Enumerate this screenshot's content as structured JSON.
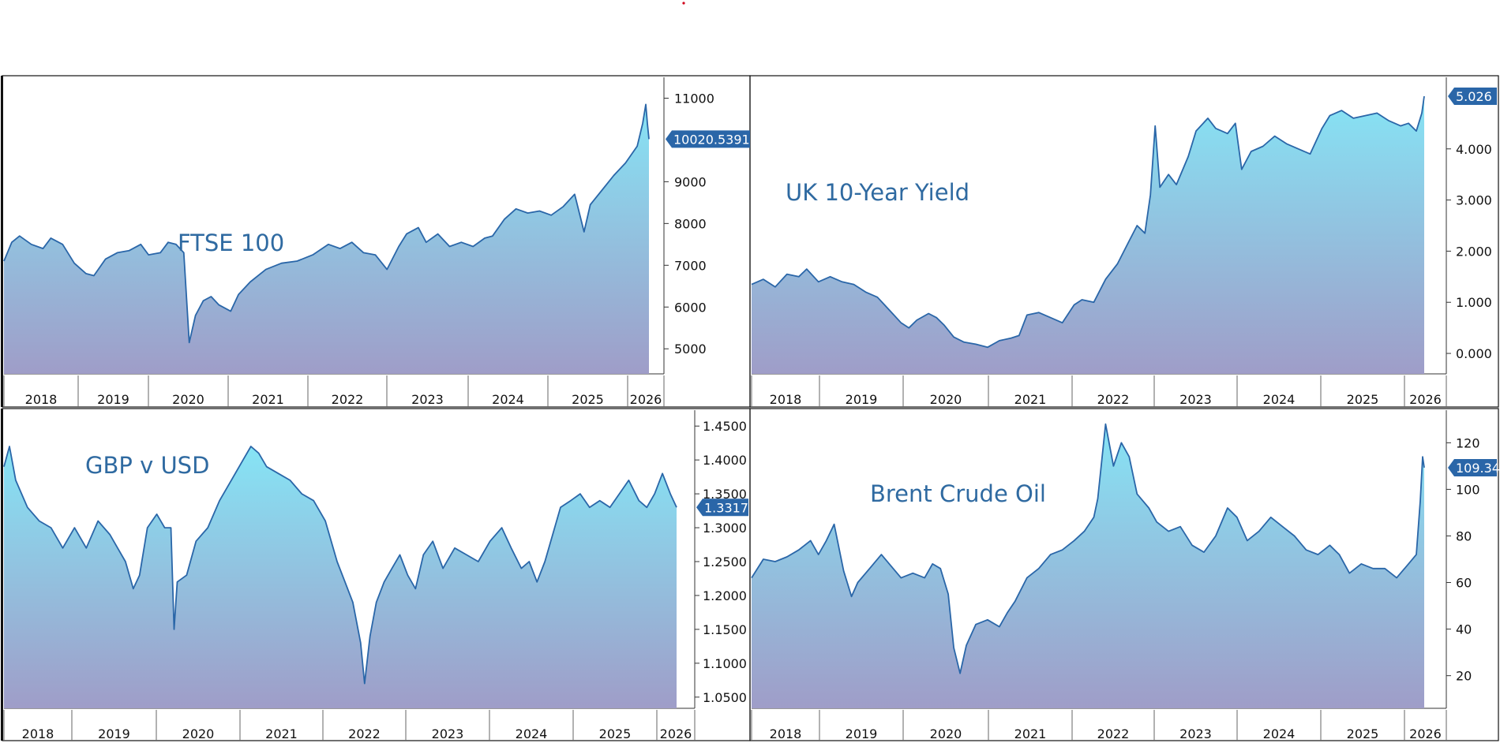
{
  "colors": {
    "line": "#2a66a8",
    "fill_top": "#86e4f5",
    "fill_bottom": "#9f9dc8",
    "title": "#2f6aa1",
    "tag": "#2a66a8",
    "dot": "#d0021b"
  },
  "chart_data": [
    {
      "id": "ftse",
      "type": "area",
      "title": "FTSE 100",
      "ylim": [
        4400,
        11500
      ],
      "yticks": [
        "5000",
        "6000",
        "7000",
        "8000",
        "9000",
        "11000"
      ],
      "ytick_values": [
        5000,
        6000,
        7000,
        8000,
        9000,
        11000
      ],
      "last_value": "10020.5391",
      "xlabels": [
        "2018",
        "2019",
        "2020",
        "2021",
        "2022",
        "2023",
        "2024",
        "2025",
        "2026"
      ],
      "x_start": 2017.85,
      "x_end": 2026.1,
      "series": [
        [
          2017.85,
          7100
        ],
        [
          2017.95,
          7550
        ],
        [
          2018.05,
          7700
        ],
        [
          2018.2,
          7500
        ],
        [
          2018.35,
          7400
        ],
        [
          2018.45,
          7650
        ],
        [
          2018.6,
          7500
        ],
        [
          2018.75,
          7050
        ],
        [
          2018.9,
          6800
        ],
        [
          2019.0,
          6750
        ],
        [
          2019.15,
          7150
        ],
        [
          2019.3,
          7300
        ],
        [
          2019.45,
          7350
        ],
        [
          2019.6,
          7500
        ],
        [
          2019.7,
          7250
        ],
        [
          2019.85,
          7300
        ],
        [
          2019.95,
          7550
        ],
        [
          2020.05,
          7500
        ],
        [
          2020.15,
          7300
        ],
        [
          2020.22,
          5150
        ],
        [
          2020.3,
          5800
        ],
        [
          2020.4,
          6150
        ],
        [
          2020.5,
          6250
        ],
        [
          2020.6,
          6050
        ],
        [
          2020.75,
          5900
        ],
        [
          2020.85,
          6300
        ],
        [
          2021.0,
          6600
        ],
        [
          2021.2,
          6900
        ],
        [
          2021.4,
          7050
        ],
        [
          2021.6,
          7100
        ],
        [
          2021.8,
          7250
        ],
        [
          2022.0,
          7500
        ],
        [
          2022.15,
          7400
        ],
        [
          2022.3,
          7550
        ],
        [
          2022.45,
          7300
        ],
        [
          2022.6,
          7250
        ],
        [
          2022.75,
          6900
        ],
        [
          2022.9,
          7450
        ],
        [
          2023.0,
          7750
        ],
        [
          2023.15,
          7900
        ],
        [
          2023.25,
          7550
        ],
        [
          2023.4,
          7750
        ],
        [
          2023.55,
          7450
        ],
        [
          2023.7,
          7550
        ],
        [
          2023.85,
          7450
        ],
        [
          2024.0,
          7650
        ],
        [
          2024.1,
          7700
        ],
        [
          2024.25,
          8100
        ],
        [
          2024.4,
          8350
        ],
        [
          2024.55,
          8250
        ],
        [
          2024.7,
          8300
        ],
        [
          2024.85,
          8200
        ],
        [
          2025.0,
          8400
        ],
        [
          2025.15,
          8700
        ],
        [
          2025.27,
          7800
        ],
        [
          2025.35,
          8450
        ],
        [
          2025.5,
          8800
        ],
        [
          2025.65,
          9150
        ],
        [
          2025.8,
          9450
        ],
        [
          2025.95,
          9850
        ],
        [
          2026.02,
          10400
        ],
        [
          2026.06,
          10850
        ],
        [
          2026.08,
          10400
        ],
        [
          2026.1,
          10020
        ]
      ]
    },
    {
      "id": "gilt",
      "type": "area",
      "title": "UK 10-Year Yield",
      "ylim": [
        -0.4,
        5.4
      ],
      "yticks": [
        "0.000",
        "1.000",
        "2.000",
        "3.000",
        "4.000"
      ],
      "ytick_values": [
        0,
        1,
        2,
        3,
        4
      ],
      "last_value": "5.026",
      "xlabels": [
        "2018",
        "2019",
        "2020",
        "2021",
        "2022",
        "2023",
        "2024",
        "2025",
        "2026"
      ],
      "x_start": 2017.65,
      "x_end": 2026.2,
      "series": [
        [
          2017.65,
          1.35
        ],
        [
          2017.8,
          1.45
        ],
        [
          2017.95,
          1.3
        ],
        [
          2018.1,
          1.55
        ],
        [
          2018.25,
          1.5
        ],
        [
          2018.35,
          1.65
        ],
        [
          2018.5,
          1.4
        ],
        [
          2018.65,
          1.5
        ],
        [
          2018.8,
          1.4
        ],
        [
          2018.95,
          1.35
        ],
        [
          2019.1,
          1.2
        ],
        [
          2019.25,
          1.1
        ],
        [
          2019.4,
          0.85
        ],
        [
          2019.55,
          0.6
        ],
        [
          2019.65,
          0.5
        ],
        [
          2019.75,
          0.65
        ],
        [
          2019.9,
          0.78
        ],
        [
          2020.0,
          0.7
        ],
        [
          2020.1,
          0.55
        ],
        [
          2020.22,
          0.32
        ],
        [
          2020.35,
          0.22
        ],
        [
          2020.5,
          0.18
        ],
        [
          2020.65,
          0.12
        ],
        [
          2020.8,
          0.25
        ],
        [
          2020.95,
          0.3
        ],
        [
          2021.05,
          0.35
        ],
        [
          2021.15,
          0.75
        ],
        [
          2021.3,
          0.8
        ],
        [
          2021.45,
          0.7
        ],
        [
          2021.6,
          0.6
        ],
        [
          2021.75,
          0.95
        ],
        [
          2021.85,
          1.05
        ],
        [
          2022.0,
          1.0
        ],
        [
          2022.15,
          1.45
        ],
        [
          2022.3,
          1.75
        ],
        [
          2022.45,
          2.2
        ],
        [
          2022.55,
          2.5
        ],
        [
          2022.65,
          2.35
        ],
        [
          2022.72,
          3.1
        ],
        [
          2022.78,
          4.45
        ],
        [
          2022.84,
          3.25
        ],
        [
          2022.95,
          3.5
        ],
        [
          2023.05,
          3.3
        ],
        [
          2023.2,
          3.85
        ],
        [
          2023.3,
          4.35
        ],
        [
          2023.45,
          4.6
        ],
        [
          2023.55,
          4.4
        ],
        [
          2023.7,
          4.3
        ],
        [
          2023.8,
          4.5
        ],
        [
          2023.88,
          3.6
        ],
        [
          2024.0,
          3.95
        ],
        [
          2024.15,
          4.05
        ],
        [
          2024.3,
          4.25
        ],
        [
          2024.45,
          4.1
        ],
        [
          2024.6,
          4.0
        ],
        [
          2024.75,
          3.9
        ],
        [
          2024.9,
          4.4
        ],
        [
          2025.0,
          4.65
        ],
        [
          2025.15,
          4.75
        ],
        [
          2025.3,
          4.6
        ],
        [
          2025.45,
          4.65
        ],
        [
          2025.6,
          4.7
        ],
        [
          2025.75,
          4.55
        ],
        [
          2025.9,
          4.45
        ],
        [
          2026.0,
          4.5
        ],
        [
          2026.1,
          4.35
        ],
        [
          2026.17,
          4.7
        ],
        [
          2026.2,
          5.03
        ]
      ]
    },
    {
      "id": "gbpusd",
      "type": "area",
      "title": "GBP v USD",
      "ylim": [
        1.0335,
        1.4735
      ],
      "yticks": [
        "1.0500",
        "1.1000",
        "1.1500",
        "1.2000",
        "1.2500",
        "1.3000",
        "1.3500",
        "1.4000",
        "1.4500"
      ],
      "ytick_values": [
        1.05,
        1.1,
        1.15,
        1.2,
        1.25,
        1.3,
        1.35,
        1.4,
        1.45
      ],
      "last_value": "1.3317",
      "xlabels": [
        "2018",
        "2019",
        "2020",
        "2021",
        "2022",
        "2023",
        "2024",
        "2025",
        "2026"
      ],
      "x_start": 2017.65,
      "x_end": 2026.23,
      "series": [
        [
          2017.65,
          1.39
        ],
        [
          2017.72,
          1.42
        ],
        [
          2017.8,
          1.37
        ],
        [
          2017.95,
          1.33
        ],
        [
          2018.1,
          1.31
        ],
        [
          2018.25,
          1.3
        ],
        [
          2018.4,
          1.27
        ],
        [
          2018.55,
          1.3
        ],
        [
          2018.7,
          1.27
        ],
        [
          2018.85,
          1.31
        ],
        [
          2019.0,
          1.29
        ],
        [
          2019.1,
          1.27
        ],
        [
          2019.2,
          1.25
        ],
        [
          2019.3,
          1.21
        ],
        [
          2019.38,
          1.23
        ],
        [
          2019.48,
          1.3
        ],
        [
          2019.6,
          1.32
        ],
        [
          2019.7,
          1.3
        ],
        [
          2019.78,
          1.3
        ],
        [
          2019.82,
          1.15
        ],
        [
          2019.86,
          1.22
        ],
        [
          2019.98,
          1.23
        ],
        [
          2020.1,
          1.28
        ],
        [
          2020.25,
          1.3
        ],
        [
          2020.4,
          1.34
        ],
        [
          2020.55,
          1.37
        ],
        [
          2020.7,
          1.4
        ],
        [
          2020.8,
          1.42
        ],
        [
          2020.9,
          1.41
        ],
        [
          2021.0,
          1.39
        ],
        [
          2021.15,
          1.38
        ],
        [
          2021.3,
          1.37
        ],
        [
          2021.45,
          1.35
        ],
        [
          2021.6,
          1.34
        ],
        [
          2021.75,
          1.31
        ],
        [
          2021.9,
          1.25
        ],
        [
          2022.0,
          1.22
        ],
        [
          2022.1,
          1.19
        ],
        [
          2022.2,
          1.13
        ],
        [
          2022.25,
          1.07
        ],
        [
          2022.32,
          1.14
        ],
        [
          2022.4,
          1.19
        ],
        [
          2022.5,
          1.22
        ],
        [
          2022.6,
          1.24
        ],
        [
          2022.7,
          1.26
        ],
        [
          2022.8,
          1.23
        ],
        [
          2022.9,
          1.21
        ],
        [
          2023.0,
          1.26
        ],
        [
          2023.12,
          1.28
        ],
        [
          2023.25,
          1.24
        ],
        [
          2023.4,
          1.27
        ],
        [
          2023.55,
          1.26
        ],
        [
          2023.7,
          1.25
        ],
        [
          2023.85,
          1.28
        ],
        [
          2024.0,
          1.3
        ],
        [
          2024.12,
          1.27
        ],
        [
          2024.25,
          1.24
        ],
        [
          2024.35,
          1.25
        ],
        [
          2024.45,
          1.22
        ],
        [
          2024.55,
          1.25
        ],
        [
          2024.65,
          1.29
        ],
        [
          2024.75,
          1.33
        ],
        [
          2024.88,
          1.34
        ],
        [
          2025.0,
          1.35
        ],
        [
          2025.12,
          1.33
        ],
        [
          2025.25,
          1.34
        ],
        [
          2025.38,
          1.33
        ],
        [
          2025.5,
          1.35
        ],
        [
          2025.62,
          1.37
        ],
        [
          2025.75,
          1.34
        ],
        [
          2025.85,
          1.33
        ],
        [
          2025.95,
          1.35
        ],
        [
          2026.05,
          1.38
        ],
        [
          2026.15,
          1.35
        ],
        [
          2026.23,
          1.33
        ]
      ]
    },
    {
      "id": "brent",
      "type": "area",
      "title": "Brent Crude Oil",
      "ylim": [
        6,
        134
      ],
      "yticks": [
        "20",
        "40",
        "60",
        "80",
        "100",
        "120"
      ],
      "ytick_values": [
        20,
        40,
        60,
        80,
        100,
        120
      ],
      "last_value": "109.34",
      "xlabels": [
        "2018",
        "2019",
        "2020",
        "2021",
        "2022",
        "2023",
        "2024",
        "2025",
        "2026"
      ],
      "x_start": 2017.65,
      "x_end": 2026.2,
      "series": [
        [
          2017.65,
          62
        ],
        [
          2017.8,
          70
        ],
        [
          2017.95,
          69
        ],
        [
          2018.1,
          71
        ],
        [
          2018.25,
          74
        ],
        [
          2018.4,
          78
        ],
        [
          2018.5,
          72
        ],
        [
          2018.6,
          78
        ],
        [
          2018.7,
          85
        ],
        [
          2018.82,
          65
        ],
        [
          2018.92,
          54
        ],
        [
          2019.0,
          60
        ],
        [
          2019.15,
          66
        ],
        [
          2019.3,
          72
        ],
        [
          2019.4,
          68
        ],
        [
          2019.55,
          62
        ],
        [
          2019.7,
          64
        ],
        [
          2019.85,
          62
        ],
        [
          2019.95,
          68
        ],
        [
          2020.05,
          66
        ],
        [
          2020.15,
          55
        ],
        [
          2020.22,
          32
        ],
        [
          2020.3,
          21
        ],
        [
          2020.38,
          33
        ],
        [
          2020.5,
          42
        ],
        [
          2020.65,
          44
        ],
        [
          2020.8,
          41
        ],
        [
          2020.9,
          47
        ],
        [
          2021.0,
          52
        ],
        [
          2021.15,
          62
        ],
        [
          2021.3,
          66
        ],
        [
          2021.45,
          72
        ],
        [
          2021.6,
          74
        ],
        [
          2021.75,
          78
        ],
        [
          2021.88,
          82
        ],
        [
          2022.0,
          88
        ],
        [
          2022.05,
          96
        ],
        [
          2022.15,
          128
        ],
        [
          2022.25,
          110
        ],
        [
          2022.35,
          120
        ],
        [
          2022.45,
          114
        ],
        [
          2022.55,
          98
        ],
        [
          2022.7,
          92
        ],
        [
          2022.8,
          86
        ],
        [
          2022.95,
          82
        ],
        [
          2023.1,
          84
        ],
        [
          2023.25,
          76
        ],
        [
          2023.4,
          73
        ],
        [
          2023.55,
          80
        ],
        [
          2023.7,
          92
        ],
        [
          2023.82,
          88
        ],
        [
          2023.95,
          78
        ],
        [
          2024.1,
          82
        ],
        [
          2024.25,
          88
        ],
        [
          2024.4,
          84
        ],
        [
          2024.55,
          80
        ],
        [
          2024.7,
          74
        ],
        [
          2024.85,
          72
        ],
        [
          2025.0,
          76
        ],
        [
          2025.12,
          72
        ],
        [
          2025.25,
          64
        ],
        [
          2025.4,
          68
        ],
        [
          2025.55,
          66
        ],
        [
          2025.7,
          66
        ],
        [
          2025.85,
          62
        ],
        [
          2026.0,
          68
        ],
        [
          2026.1,
          72
        ],
        [
          2026.15,
          95
        ],
        [
          2026.18,
          114
        ],
        [
          2026.2,
          109.3
        ]
      ]
    }
  ]
}
